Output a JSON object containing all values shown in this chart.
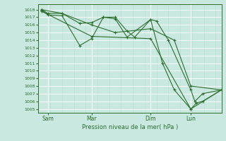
{
  "bg_color": "#c8e8e0",
  "grid_color": "#a8ccc4",
  "line_color": "#2d6e2d",
  "ylabel_text": "Pression niveau de la mer( hPa )",
  "ylim": [
    1004.5,
    1018.7
  ],
  "yticks": [
    1005,
    1006,
    1007,
    1008,
    1009,
    1010,
    1011,
    1012,
    1013,
    1014,
    1015,
    1016,
    1017,
    1018
  ],
  "xtick_labels": [
    "Sam",
    "Mar",
    "Dim",
    "Lun"
  ],
  "xtick_positions": [
    16,
    90,
    190,
    258
  ],
  "xlim": [
    0,
    310
  ],
  "series": [
    {
      "x": [
        5,
        16,
        40,
        70,
        90,
        110,
        130,
        150,
        163,
        190,
        200,
        220,
        258,
        265,
        278,
        310
      ],
      "y": [
        1018.0,
        1017.5,
        1017.5,
        1016.2,
        1016.3,
        1017.0,
        1017.0,
        1015.2,
        1014.4,
        1016.7,
        1016.5,
        1014.0,
        1007.5,
        1006.0,
        1007.0,
        1007.5
      ]
    },
    {
      "x": [
        5,
        16,
        40,
        70,
        90,
        110,
        130,
        150,
        190,
        210,
        230,
        258,
        268,
        278,
        310
      ],
      "y": [
        1018.0,
        1017.3,
        1017.2,
        1013.3,
        1014.2,
        1017.0,
        1016.8,
        1014.4,
        1016.7,
        1011.0,
        1007.5,
        1005.0,
        1005.8,
        1006.0,
        1007.5
      ]
    },
    {
      "x": [
        5,
        40,
        90,
        130,
        190,
        230,
        258,
        310
      ],
      "y": [
        1018.0,
        1017.5,
        1016.0,
        1015.0,
        1015.5,
        1014.0,
        1008.0,
        1007.5
      ]
    },
    {
      "x": [
        5,
        90,
        190,
        258,
        310
      ],
      "y": [
        1017.8,
        1014.5,
        1014.2,
        1005.0,
        1007.5
      ]
    }
  ]
}
